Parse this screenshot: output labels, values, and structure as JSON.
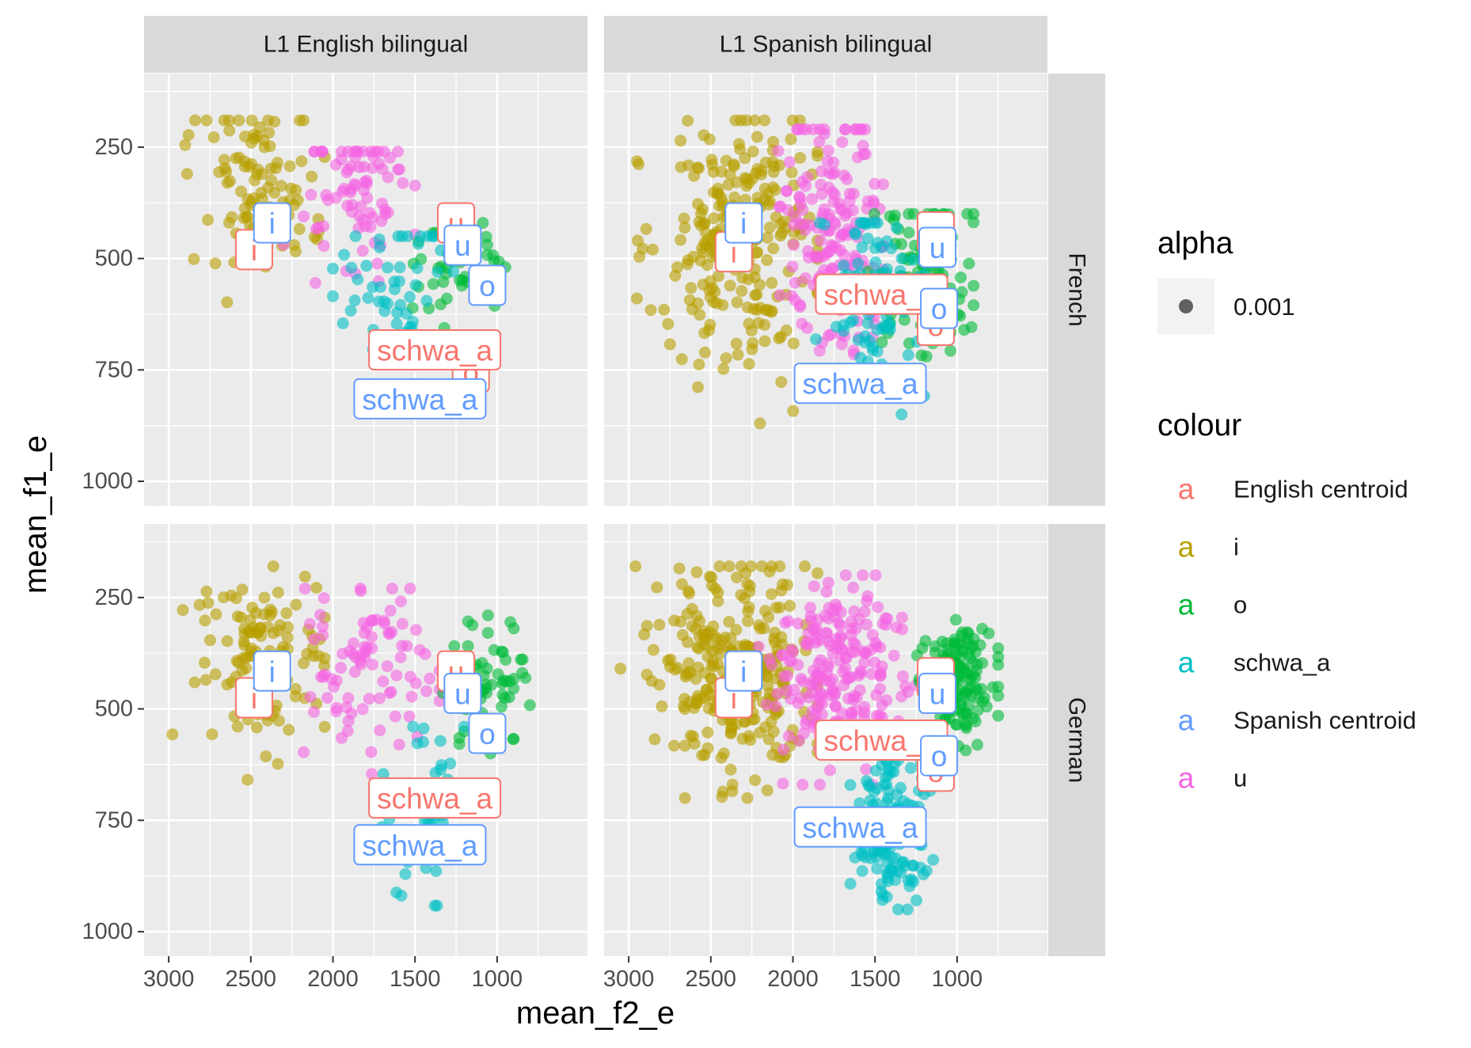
{
  "chart_data": {
    "type": "scatter",
    "title": "",
    "xlabel": "mean_f2_e",
    "ylabel": "mean_f1_e",
    "x_reversed": true,
    "y_reversed": true,
    "xlim": [
      3150,
      450
    ],
    "ylim": [
      85,
      1055
    ],
    "x_ticks": [
      3000,
      2500,
      2000,
      1500,
      1000
    ],
    "x_tick_labels": [
      "3000",
      "2500",
      "2000",
      "1500",
      "1000"
    ],
    "y_ticks": [
      250,
      500,
      750,
      1000
    ],
    "y_tick_labels": [
      "250",
      "500",
      "750",
      "1000"
    ],
    "grid": true,
    "legend_position": "right",
    "facet_columns": [
      "L1 English bilingual",
      "L1 Spanish bilingual"
    ],
    "facet_rows": [
      "French",
      "German"
    ],
    "legend_alpha": {
      "title": "alpha",
      "label": "0.001"
    },
    "legend_colour": {
      "title": "colour",
      "key_glyph": "a",
      "entries": [
        {
          "label": "English centroid",
          "color": "#F8766D"
        },
        {
          "label": "i",
          "color": "#B79F00"
        },
        {
          "label": "o",
          "color": "#00BA38"
        },
        {
          "label": "schwa_a",
          "color": "#00BFC4"
        },
        {
          "label": "Spanish centroid",
          "color": "#619CFF"
        },
        {
          "label": "u",
          "color": "#F564E3"
        }
      ]
    },
    "point_alpha": 0.6,
    "clusters": {
      "i": {
        "color": "#B79F00"
      },
      "u": {
        "color": "#F564E3"
      },
      "o": {
        "color": "#00BA38"
      },
      "schwa_a": {
        "color": "#00BFC4"
      }
    },
    "panels": [
      {
        "col": 0,
        "row": 0,
        "point_clouds": [
          {
            "vowel": "i",
            "n": 100,
            "cx": 2450,
            "cy": 320,
            "sx": 230,
            "sy": 110,
            "xr": [
              2050,
              2900
            ],
            "yr": [
              190,
              840
            ]
          },
          {
            "vowel": "u",
            "n": 80,
            "cx": 1880,
            "cy": 350,
            "sx": 190,
            "sy": 120,
            "xr": [
              1500,
              2300
            ],
            "yr": [
              260,
              1020
            ]
          },
          {
            "vowel": "o",
            "n": 50,
            "cx": 1220,
            "cy": 530,
            "sx": 170,
            "sy": 80,
            "xr": [
              950,
              1600
            ],
            "yr": [
              420,
              660
            ]
          },
          {
            "vowel": "schwa_a",
            "n": 55,
            "cx": 1600,
            "cy": 560,
            "sx": 200,
            "sy": 100,
            "xr": [
              1200,
              2000
            ],
            "yr": [
              450,
              790
            ]
          }
        ],
        "labels": [
          {
            "text": "i",
            "centroid": "English centroid",
            "x": 2480,
            "y": 480
          },
          {
            "text": "i",
            "centroid": "Spanish centroid",
            "x": 2370,
            "y": 420
          },
          {
            "text": "u",
            "centroid": "English centroid",
            "x": 1250,
            "y": 420
          },
          {
            "text": "u",
            "centroid": "Spanish centroid",
            "x": 1210,
            "y": 470
          },
          {
            "text": "o",
            "centroid": "English centroid",
            "x": 1160,
            "y": 755
          },
          {
            "text": "o",
            "centroid": "Spanish centroid",
            "x": 1060,
            "y": 560
          },
          {
            "text": "schwa_a",
            "centroid": "English centroid",
            "x": 1380,
            "y": 705
          },
          {
            "text": "schwa_a",
            "centroid": "Spanish centroid",
            "x": 1470,
            "y": 815
          }
        ]
      },
      {
        "col": 1,
        "row": 0,
        "point_clouds": [
          {
            "vowel": "i",
            "n": 250,
            "cx": 2300,
            "cy": 450,
            "sx": 290,
            "sy": 170,
            "xr": [
              1850,
              2950
            ],
            "yr": [
              190,
              870
            ]
          },
          {
            "vowel": "u",
            "n": 170,
            "cx": 1750,
            "cy": 420,
            "sx": 190,
            "sy": 160,
            "xr": [
              1450,
              2300
            ],
            "yr": [
              210,
              1020
            ]
          },
          {
            "vowel": "o",
            "n": 130,
            "cx": 1200,
            "cy": 540,
            "sx": 190,
            "sy": 100,
            "xr": [
              900,
              1700
            ],
            "yr": [
              400,
              720
            ]
          },
          {
            "vowel": "schwa_a",
            "n": 100,
            "cx": 1520,
            "cy": 590,
            "sx": 190,
            "sy": 120,
            "xr": [
              1200,
              1950
            ],
            "yr": [
              420,
              850
            ]
          }
        ],
        "labels": [
          {
            "text": "i",
            "centroid": "English centroid",
            "x": 2360,
            "y": 485
          },
          {
            "text": "i",
            "centroid": "Spanish centroid",
            "x": 2300,
            "y": 420
          },
          {
            "text": "u",
            "centroid": "English centroid",
            "x": 1130,
            "y": 440
          },
          {
            "text": "u",
            "centroid": "Spanish centroid",
            "x": 1120,
            "y": 475
          },
          {
            "text": "o",
            "centroid": "English centroid",
            "x": 1130,
            "y": 650
          },
          {
            "text": "o",
            "centroid": "Spanish centroid",
            "x": 1110,
            "y": 612
          },
          {
            "text": "schwa_a",
            "centroid": "English centroid",
            "x": 1460,
            "y": 580
          },
          {
            "text": "schwa_a",
            "centroid": "Spanish centroid",
            "x": 1590,
            "y": 780
          }
        ]
      },
      {
        "col": 0,
        "row": 1,
        "point_clouds": [
          {
            "vowel": "i",
            "n": 120,
            "cx": 2450,
            "cy": 380,
            "sx": 250,
            "sy": 120,
            "xr": [
              2050,
              3000
            ],
            "yr": [
              180,
              700
            ]
          },
          {
            "vowel": "u",
            "n": 90,
            "cx": 1800,
            "cy": 400,
            "sx": 240,
            "sy": 110,
            "xr": [
              1350,
              2300
            ],
            "yr": [
              230,
              650
            ]
          },
          {
            "vowel": "o",
            "n": 60,
            "cx": 1050,
            "cy": 440,
            "sx": 160,
            "sy": 80,
            "xr": [
              800,
              1400
            ],
            "yr": [
              290,
              600
            ]
          },
          {
            "vowel": "schwa_a",
            "n": 50,
            "cx": 1420,
            "cy": 730,
            "sx": 140,
            "sy": 120,
            "xr": [
              1200,
              1700
            ],
            "yr": [
              540,
              950
            ]
          }
        ],
        "labels": [
          {
            "text": "i",
            "centroid": "English centroid",
            "x": 2480,
            "y": 475
          },
          {
            "text": "i",
            "centroid": "Spanish centroid",
            "x": 2370,
            "y": 415
          },
          {
            "text": "u",
            "centroid": "English centroid",
            "x": 1250,
            "y": 415
          },
          {
            "text": "u",
            "centroid": "Spanish centroid",
            "x": 1210,
            "y": 465
          },
          {
            "text": "o",
            "centroid": "Spanish centroid",
            "x": 1060,
            "y": 555
          },
          {
            "text": "schwa_a",
            "centroid": "English centroid",
            "x": 1380,
            "y": 700
          },
          {
            "text": "schwa_a",
            "centroid": "Spanish centroid",
            "x": 1470,
            "y": 805
          }
        ]
      },
      {
        "col": 1,
        "row": 1,
        "point_clouds": [
          {
            "vowel": "i",
            "n": 280,
            "cx": 2350,
            "cy": 400,
            "sx": 300,
            "sy": 140,
            "xr": [
              1850,
              3050
            ],
            "yr": [
              180,
              700
            ]
          },
          {
            "vowel": "u",
            "n": 220,
            "cx": 1750,
            "cy": 420,
            "sx": 250,
            "sy": 120,
            "xr": [
              1250,
              2350
            ],
            "yr": [
              200,
              670
            ]
          },
          {
            "vowel": "o",
            "n": 160,
            "cx": 1000,
            "cy": 440,
            "sx": 130,
            "sy": 70,
            "xr": [
              750,
              1350
            ],
            "yr": [
              300,
              600
            ]
          },
          {
            "vowel": "schwa_a",
            "n": 150,
            "cx": 1380,
            "cy": 780,
            "sx": 140,
            "sy": 110,
            "xr": [
              1050,
              1650
            ],
            "yr": [
              600,
              950
            ]
          }
        ],
        "labels": [
          {
            "text": "i",
            "centroid": "English centroid",
            "x": 2360,
            "y": 475
          },
          {
            "text": "i",
            "centroid": "Spanish centroid",
            "x": 2300,
            "y": 415
          },
          {
            "text": "u",
            "centroid": "English centroid",
            "x": 1130,
            "y": 430
          },
          {
            "text": "u",
            "centroid": "Spanish centroid",
            "x": 1120,
            "y": 465
          },
          {
            "text": "o",
            "centroid": "English centroid",
            "x": 1130,
            "y": 640
          },
          {
            "text": "o",
            "centroid": "Spanish centroid",
            "x": 1110,
            "y": 605
          },
          {
            "text": "schwa_a",
            "centroid": "English centroid",
            "x": 1460,
            "y": 570
          },
          {
            "text": "schwa_a",
            "centroid": "Spanish centroid",
            "x": 1590,
            "y": 765
          }
        ]
      }
    ]
  }
}
